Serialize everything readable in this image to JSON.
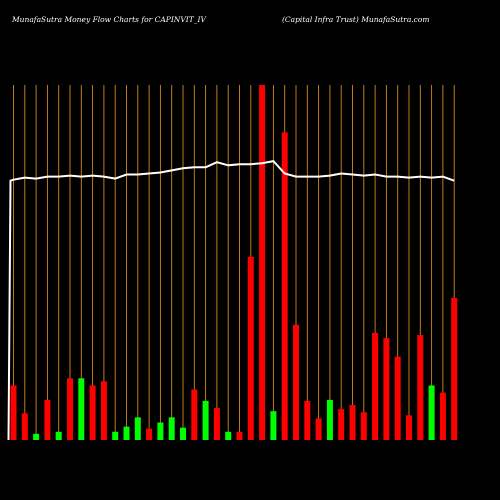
{
  "header": {
    "left": "MunafaSutra  Money Flow  Charts for CAPINVIT_IV",
    "right": "(Capital Infra  Trust) MunafaSutra.com"
  },
  "colors": {
    "background": "#000000",
    "gridline": "#d4881c",
    "up": "#00ff00",
    "down": "#ff0000",
    "line": "#ffffff",
    "text": "#ffffff"
  },
  "chart_data": {
    "type": "bar",
    "grid": "vertical",
    "categories": [
      "",
      "",
      "",
      "",
      "",
      "",
      "",
      "",
      "",
      "",
      "",
      "",
      "",
      "",
      "",
      "",
      "",
      "",
      "",
      "",
      "",
      "",
      "",
      "",
      "",
      "",
      "",
      "",
      "",
      "",
      "",
      "",
      "",
      "",
      "",
      "",
      "",
      "",
      "",
      ""
    ],
    "bar_values": [
      53,
      26,
      6,
      39,
      8,
      60,
      60,
      53,
      57,
      8,
      13,
      22,
      11,
      17,
      22,
      12,
      49,
      38,
      31,
      8,
      8,
      178,
      345,
      28,
      299,
      112,
      38,
      21,
      39,
      30,
      34,
      27,
      104,
      99,
      81,
      24,
      102,
      53,
      46,
      138
    ],
    "bar_colors": [
      "red",
      "red",
      "green",
      "red",
      "green",
      "red",
      "green",
      "red",
      "red",
      "green",
      "green",
      "green",
      "red",
      "green",
      "green",
      "green",
      "red",
      "green",
      "red",
      "green",
      "red",
      "red",
      "red",
      "green",
      "red",
      "red",
      "red",
      "red",
      "green",
      "red",
      "red",
      "red",
      "red",
      "red",
      "red",
      "red",
      "red",
      "green",
      "red",
      "red"
    ],
    "line_values": [
      253,
      255,
      254,
      256,
      256,
      257,
      256,
      257,
      256,
      254,
      258,
      258,
      259,
      260,
      262,
      264,
      265,
      265,
      270,
      267,
      268,
      268,
      269,
      271,
      259,
      256,
      256,
      256,
      257,
      259,
      258,
      257,
      258,
      256,
      256,
      255,
      256,
      255,
      256,
      252
    ],
    "line_start_value": 252,
    "line_start_from_baseline": true,
    "ylim": [
      0,
      345
    ],
    "tick_labels": [
      "",
      "",
      "",
      "",
      "",
      "",
      "",
      "",
      "",
      "",
      "",
      "",
      "",
      "",
      "",
      "",
      "",
      "",
      "",
      "",
      "",
      "",
      "",
      "",
      "",
      "",
      "",
      "",
      "",
      "",
      "",
      "",
      "",
      "",
      "",
      "",
      "",
      "",
      "",
      ""
    ]
  }
}
